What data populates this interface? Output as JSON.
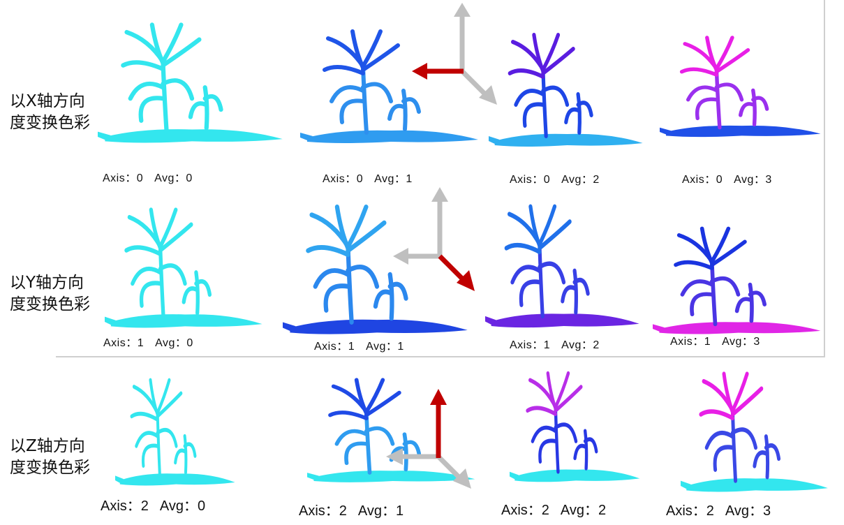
{
  "rows": [
    {
      "label_line1": "以X轴方向",
      "label_line2": "度变换色彩",
      "panels": [
        {
          "axis_text": "Axis：0",
          "avg_text": "Avg：0",
          "colors": [
            "#33e6ee",
            "#33e6ee",
            "#33e6ee"
          ]
        },
        {
          "axis_text": "Axis：0",
          "avg_text": "Avg：1",
          "colors": [
            "#1f55e8",
            "#2e8fee",
            "#2f9cf0"
          ]
        },
        {
          "axis_text": "Axis：0",
          "avg_text": "Avg：2",
          "colors": [
            "#5a1de0",
            "#1e46e6",
            "#2fb0f0"
          ]
        },
        {
          "axis_text": "Axis：0",
          "avg_text": "Avg：3",
          "colors": [
            "#e81fe6",
            "#9a30ee",
            "#2050e8"
          ]
        }
      ]
    },
    {
      "label_line1": "以Y轴方向",
      "label_line2": "度变换色彩",
      "panels": [
        {
          "axis_text": "Axis：1",
          "avg_text": "Avg：0",
          "colors": [
            "#33e6ee",
            "#33e6ee",
            "#33e6ee"
          ]
        },
        {
          "axis_text": "Axis：1",
          "avg_text": "Avg：1",
          "colors": [
            "#2fa4f0",
            "#2b88ee",
            "#1f45e2"
          ]
        },
        {
          "axis_text": "Axis：1",
          "avg_text": "Avg：2",
          "colors": [
            "#2070ea",
            "#3840e6",
            "#6a25e2"
          ]
        },
        {
          "axis_text": "Axis：1",
          "avg_text": "Avg：3",
          "colors": [
            "#1a34e0",
            "#4a35e4",
            "#e026e6"
          ]
        }
      ]
    },
    {
      "label_line1": "以Z轴方向",
      "label_line2": "度变换色彩",
      "panels": [
        {
          "axis_text": "Axis：2",
          "avg_text": "Avg：0",
          "colors": [
            "#33e6ee",
            "#33e6ee",
            "#33e6ee"
          ]
        },
        {
          "axis_text": "Axis：2",
          "avg_text": "Avg：1",
          "colors": [
            "#1f4ae6",
            "#2f9cf0",
            "#33e6ee"
          ]
        },
        {
          "axis_text": "Axis：2",
          "avg_text": "Avg：2",
          "colors": [
            "#b82ee8",
            "#2838e4",
            "#33e6ee"
          ]
        },
        {
          "axis_text": "Axis：2",
          "avg_text": "Avg：3",
          "colors": [
            "#e81fe6",
            "#3a48e6",
            "#33e6ee"
          ]
        }
      ]
    }
  ],
  "arrow_colors": {
    "highlight": "#c00000",
    "neutral": "#bfbfbf"
  }
}
